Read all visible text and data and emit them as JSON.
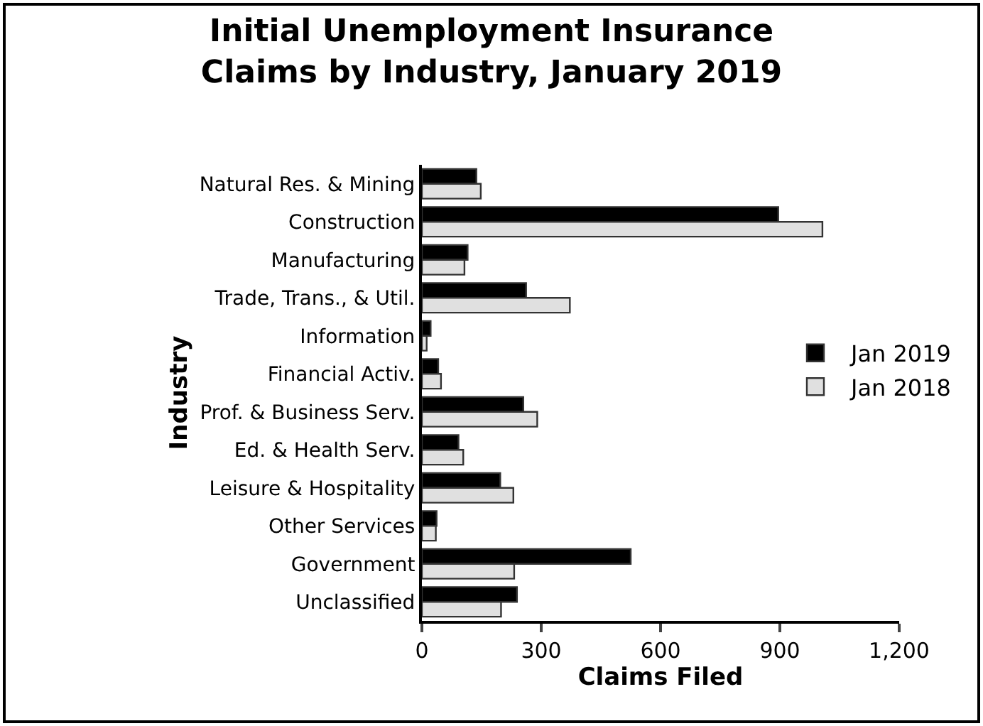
{
  "chart_data": {
    "type": "bar",
    "orientation": "horizontal",
    "title": "Initial Unemployment Insurance\nClaims by Industry, January 2019",
    "xlabel": "Claims Filed",
    "ylabel": "Industry",
    "categories": [
      "Natural Res. & Mining",
      "Construction",
      "Manufacturing",
      "Trade, Trans., & Util.",
      "Information",
      "Financial Activ.",
      "Prof. & Business Serv.",
      "Ed. & Health Serv.",
      "Leisure & Hospitality",
      "Other Services",
      "Government",
      "Unclassified"
    ],
    "series": [
      {
        "name": "Jan 2019",
        "color": "#000000",
        "values": [
          137,
          896,
          115,
          262,
          22,
          41,
          255,
          92,
          197,
          37,
          525,
          239
        ]
      },
      {
        "name": "Jan 2018",
        "color": "#e0e0e0",
        "values": [
          148,
          1007,
          107,
          372,
          12,
          48,
          290,
          104,
          230,
          35,
          232,
          199
        ]
      }
    ],
    "xlim": [
      0,
      1200
    ],
    "xticks": [
      0,
      300,
      600,
      900,
      {
        "value": 1200,
        "label": "1,200"
      }
    ],
    "grid": false,
    "legend": "right"
  }
}
